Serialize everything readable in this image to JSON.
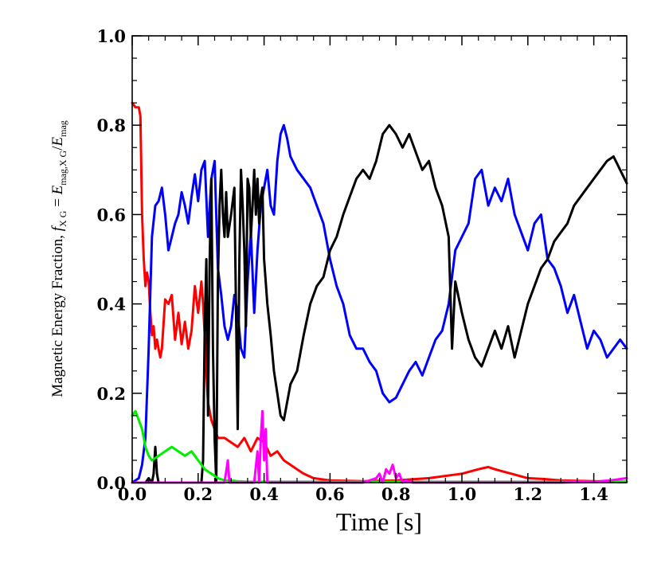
{
  "chart_data": {
    "type": "line",
    "title": "",
    "xlabel": "Time [s]",
    "ylabel": "Magnetic Energy Fraction, f_X G = E_mag,X G / E_mag",
    "ylabel_parts": {
      "text": "Magnetic Energy Fraction, ",
      "f": "f",
      "sub_xg": "X G",
      "eq": " = ",
      "E": "E",
      "sub_magxg": "mag,X G",
      "slash": "/",
      "E2": "E",
      "sub_mag": "mag"
    },
    "xlim": [
      0,
      1.5
    ],
    "ylim": [
      0,
      1.0
    ],
    "xticks": [
      0.0,
      0.2,
      0.4,
      0.6,
      0.8,
      1.0,
      1.2,
      1.4
    ],
    "xtick_labels": [
      "0.0",
      "0.2",
      "0.4",
      "0.6",
      "0.8",
      "1.0",
      "1.2",
      "1.4"
    ],
    "yticks": [
      0.0,
      0.2,
      0.4,
      0.6,
      0.8,
      1.0
    ],
    "ytick_labels": [
      "0.0",
      "0.2",
      "0.4",
      "0.6",
      "0.8",
      "1.0"
    ],
    "grid": false,
    "series": [
      {
        "name": "red",
        "color": "#ff0000",
        "x": [
          0.0,
          0.01,
          0.02,
          0.025,
          0.03,
          0.035,
          0.04,
          0.045,
          0.05,
          0.055,
          0.06,
          0.065,
          0.07,
          0.075,
          0.08,
          0.085,
          0.09,
          0.1,
          0.11,
          0.12,
          0.13,
          0.14,
          0.15,
          0.16,
          0.17,
          0.18,
          0.19,
          0.2,
          0.21,
          0.215,
          0.22,
          0.225,
          0.23,
          0.24,
          0.25,
          0.26,
          0.28,
          0.3,
          0.32,
          0.34,
          0.36,
          0.38,
          0.4,
          0.42,
          0.44,
          0.46,
          0.48,
          0.5,
          0.52,
          0.55,
          0.6,
          0.7,
          0.8,
          0.9,
          1.0,
          1.05,
          1.08,
          1.1,
          1.15,
          1.2,
          1.25,
          1.3,
          1.4,
          1.5
        ],
        "y": [
          0.85,
          0.84,
          0.84,
          0.82,
          0.6,
          0.5,
          0.44,
          0.47,
          0.45,
          0.38,
          0.33,
          0.35,
          0.3,
          0.32,
          0.3,
          0.28,
          0.3,
          0.41,
          0.4,
          0.42,
          0.32,
          0.38,
          0.31,
          0.36,
          0.3,
          0.34,
          0.44,
          0.38,
          0.45,
          0.4,
          0.33,
          0.25,
          0.18,
          0.14,
          0.12,
          0.1,
          0.1,
          0.09,
          0.08,
          0.1,
          0.07,
          0.1,
          0.09,
          0.06,
          0.07,
          0.05,
          0.04,
          0.03,
          0.02,
          0.01,
          0.005,
          0.003,
          0.005,
          0.01,
          0.02,
          0.03,
          0.035,
          0.03,
          0.02,
          0.01,
          0.008,
          0.005,
          0.003,
          0.002
        ]
      },
      {
        "name": "blue",
        "color": "#0000ff",
        "x": [
          0.0,
          0.02,
          0.03,
          0.04,
          0.05,
          0.06,
          0.07,
          0.08,
          0.09,
          0.1,
          0.11,
          0.12,
          0.13,
          0.14,
          0.15,
          0.16,
          0.17,
          0.18,
          0.19,
          0.2,
          0.21,
          0.22,
          0.23,
          0.24,
          0.25,
          0.26,
          0.27,
          0.28,
          0.29,
          0.3,
          0.31,
          0.32,
          0.33,
          0.34,
          0.35,
          0.36,
          0.37,
          0.38,
          0.39,
          0.4,
          0.41,
          0.42,
          0.43,
          0.44,
          0.45,
          0.46,
          0.47,
          0.48,
          0.5,
          0.52,
          0.54,
          0.56,
          0.58,
          0.6,
          0.62,
          0.64,
          0.66,
          0.68,
          0.7,
          0.72,
          0.74,
          0.76,
          0.78,
          0.8,
          0.82,
          0.84,
          0.86,
          0.88,
          0.9,
          0.92,
          0.94,
          0.96,
          0.98,
          1.0,
          1.02,
          1.04,
          1.06,
          1.08,
          1.1,
          1.12,
          1.14,
          1.16,
          1.18,
          1.2,
          1.22,
          1.24,
          1.26,
          1.28,
          1.3,
          1.32,
          1.34,
          1.36,
          1.38,
          1.4,
          1.42,
          1.44,
          1.46,
          1.48,
          1.5
        ],
        "y": [
          0.0,
          0.01,
          0.04,
          0.1,
          0.3,
          0.55,
          0.62,
          0.63,
          0.66,
          0.6,
          0.52,
          0.55,
          0.58,
          0.6,
          0.65,
          0.62,
          0.58,
          0.64,
          0.69,
          0.63,
          0.7,
          0.72,
          0.55,
          0.68,
          0.72,
          0.48,
          0.42,
          0.35,
          0.32,
          0.35,
          0.42,
          0.38,
          0.3,
          0.28,
          0.45,
          0.56,
          0.38,
          0.52,
          0.62,
          0.66,
          0.7,
          0.62,
          0.6,
          0.72,
          0.78,
          0.8,
          0.77,
          0.73,
          0.7,
          0.68,
          0.66,
          0.62,
          0.58,
          0.5,
          0.44,
          0.4,
          0.33,
          0.3,
          0.3,
          0.27,
          0.25,
          0.2,
          0.18,
          0.19,
          0.22,
          0.25,
          0.27,
          0.24,
          0.28,
          0.32,
          0.34,
          0.4,
          0.52,
          0.55,
          0.58,
          0.68,
          0.7,
          0.62,
          0.66,
          0.63,
          0.68,
          0.6,
          0.56,
          0.52,
          0.58,
          0.6,
          0.5,
          0.48,
          0.44,
          0.38,
          0.42,
          0.36,
          0.3,
          0.34,
          0.32,
          0.28,
          0.3,
          0.32,
          0.3
        ]
      },
      {
        "name": "black",
        "color": "#000000",
        "x": [
          0.0,
          0.04,
          0.05,
          0.06,
          0.065,
          0.07,
          0.075,
          0.08,
          0.1,
          0.2,
          0.21,
          0.215,
          0.22,
          0.225,
          0.23,
          0.235,
          0.24,
          0.245,
          0.25,
          0.255,
          0.26,
          0.265,
          0.27,
          0.275,
          0.28,
          0.285,
          0.29,
          0.3,
          0.31,
          0.315,
          0.32,
          0.325,
          0.33,
          0.335,
          0.34,
          0.345,
          0.35,
          0.355,
          0.36,
          0.365,
          0.37,
          0.375,
          0.38,
          0.385,
          0.39,
          0.395,
          0.4,
          0.41,
          0.42,
          0.43,
          0.44,
          0.45,
          0.46,
          0.48,
          0.5,
          0.52,
          0.54,
          0.56,
          0.58,
          0.6,
          0.62,
          0.64,
          0.66,
          0.68,
          0.7,
          0.72,
          0.74,
          0.76,
          0.78,
          0.8,
          0.82,
          0.84,
          0.86,
          0.88,
          0.9,
          0.92,
          0.94,
          0.96,
          0.97,
          0.98,
          1.0,
          1.02,
          1.04,
          1.06,
          1.08,
          1.1,
          1.12,
          1.14,
          1.16,
          1.18,
          1.2,
          1.22,
          1.24,
          1.26,
          1.28,
          1.3,
          1.32,
          1.34,
          1.36,
          1.38,
          1.4,
          1.42,
          1.44,
          1.46,
          1.48,
          1.5
        ],
        "y": [
          0.0,
          0.0,
          0.01,
          0.0,
          0.02,
          0.08,
          0.02,
          0.0,
          0.0,
          0.0,
          0.0,
          0.05,
          0.35,
          0.5,
          0.15,
          0.5,
          0.68,
          0.3,
          0.1,
          0.0,
          0.45,
          0.62,
          0.7,
          0.6,
          0.55,
          0.65,
          0.55,
          0.6,
          0.66,
          0.38,
          0.12,
          0.5,
          0.7,
          0.62,
          0.52,
          0.35,
          0.68,
          0.66,
          0.55,
          0.62,
          0.7,
          0.6,
          0.68,
          0.58,
          0.64,
          0.66,
          0.5,
          0.4,
          0.33,
          0.25,
          0.2,
          0.15,
          0.14,
          0.22,
          0.25,
          0.33,
          0.4,
          0.44,
          0.46,
          0.52,
          0.55,
          0.6,
          0.64,
          0.68,
          0.7,
          0.68,
          0.72,
          0.78,
          0.8,
          0.78,
          0.75,
          0.78,
          0.74,
          0.7,
          0.72,
          0.66,
          0.62,
          0.55,
          0.3,
          0.45,
          0.38,
          0.32,
          0.28,
          0.26,
          0.3,
          0.34,
          0.3,
          0.35,
          0.28,
          0.34,
          0.4,
          0.44,
          0.48,
          0.5,
          0.54,
          0.56,
          0.58,
          0.62,
          0.64,
          0.66,
          0.68,
          0.7,
          0.72,
          0.73,
          0.7,
          0.67
        ]
      },
      {
        "name": "green",
        "color": "#00ee00",
        "x": [
          0.0,
          0.01,
          0.02,
          0.03,
          0.04,
          0.05,
          0.06,
          0.08,
          0.1,
          0.12,
          0.14,
          0.16,
          0.18,
          0.2,
          0.22,
          0.24,
          0.26,
          0.28,
          0.3,
          0.32,
          0.35,
          0.4,
          0.5,
          0.6,
          0.7,
          0.8,
          0.9,
          1.0,
          1.2,
          1.4,
          1.5
        ],
        "y": [
          0.15,
          0.16,
          0.14,
          0.12,
          0.08,
          0.06,
          0.05,
          0.06,
          0.07,
          0.08,
          0.07,
          0.06,
          0.07,
          0.05,
          0.03,
          0.02,
          0.01,
          0.005,
          0.005,
          0.003,
          0.002,
          0.002,
          0.002,
          0.002,
          0.002,
          0.002,
          0.002,
          0.002,
          0.002,
          0.002,
          0.002
        ]
      },
      {
        "name": "magenta",
        "color": "#ff00ff",
        "x": [
          0.0,
          0.1,
          0.2,
          0.28,
          0.29,
          0.295,
          0.3,
          0.31,
          0.37,
          0.38,
          0.385,
          0.39,
          0.395,
          0.4,
          0.405,
          0.41,
          0.42,
          0.5,
          0.6,
          0.7,
          0.74,
          0.75,
          0.76,
          0.77,
          0.78,
          0.79,
          0.8,
          0.81,
          0.82,
          0.83,
          0.85,
          0.9,
          1.0,
          1.1,
          1.2,
          1.3,
          1.4,
          1.45,
          1.5
        ],
        "y": [
          0.0,
          0.0,
          0.0,
          0.0,
          0.05,
          0.0,
          0.0,
          0.0,
          0.0,
          0.07,
          0.0,
          0.1,
          0.16,
          0.05,
          0.12,
          0.0,
          0.0,
          0.0,
          0.0,
          0.0,
          0.01,
          0.02,
          0.0,
          0.03,
          0.02,
          0.04,
          0.01,
          0.02,
          0.0,
          0.005,
          0.0,
          0.0,
          0.0,
          0.0,
          0.0,
          0.0,
          0.002,
          0.005,
          0.01
        ]
      }
    ]
  }
}
